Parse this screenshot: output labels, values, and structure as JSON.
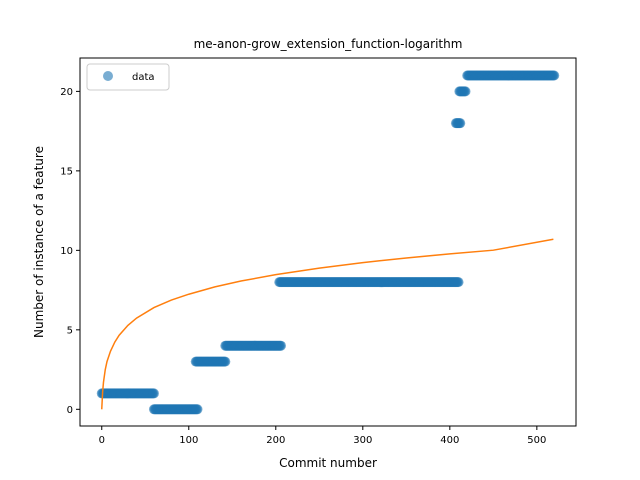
{
  "chart_data": {
    "type": "scatter",
    "title": "me-anon-grow_extension_function-logarithm",
    "xlabel": "Commit number",
    "ylabel": "Number of instance of a feature",
    "xlim": [
      -25,
      545
    ],
    "ylim": [
      -1.05,
      22.1
    ],
    "x_ticks": [
      0,
      100,
      200,
      300,
      400,
      500
    ],
    "y_ticks": [
      0,
      5,
      10,
      15,
      20
    ],
    "grid": false,
    "legend": {
      "position": "top-left",
      "entries": [
        "data"
      ]
    },
    "colors": {
      "data": "#1f77b4",
      "fit": "#ff7f0e"
    },
    "series": [
      {
        "name": "data",
        "kind": "scatter",
        "segments": [
          {
            "x_start": 0,
            "x_end": 60,
            "y": 1
          },
          {
            "x_start": 60,
            "x_end": 110,
            "y": 0
          },
          {
            "x_start": 108,
            "x_end": 142,
            "y": 3
          },
          {
            "x_start": 142,
            "x_end": 206,
            "y": 4
          },
          {
            "x_start": 204,
            "x_end": 410,
            "y": 8
          },
          {
            "x_start": 407,
            "x_end": 412,
            "y": 18
          },
          {
            "x_start": 411,
            "x_end": 418,
            "y": 20
          },
          {
            "x_start": 420,
            "x_end": 520,
            "y": 21
          }
        ]
      },
      {
        "kind": "line",
        "function": "logarithm",
        "x": [
          0,
          1,
          2,
          4,
          6,
          10,
          15,
          20,
          30,
          40,
          60,
          80,
          100,
          130,
          160,
          200,
          250,
          300,
          350,
          400,
          450,
          519
        ],
        "y": [
          0,
          1.09,
          1.71,
          2.49,
          3.0,
          3.65,
          4.23,
          4.66,
          5.28,
          5.74,
          6.4,
          6.87,
          7.24,
          7.7,
          8.07,
          8.47,
          8.88,
          9.23,
          9.52,
          9.78,
          10.01,
          10.7
        ]
      }
    ]
  }
}
